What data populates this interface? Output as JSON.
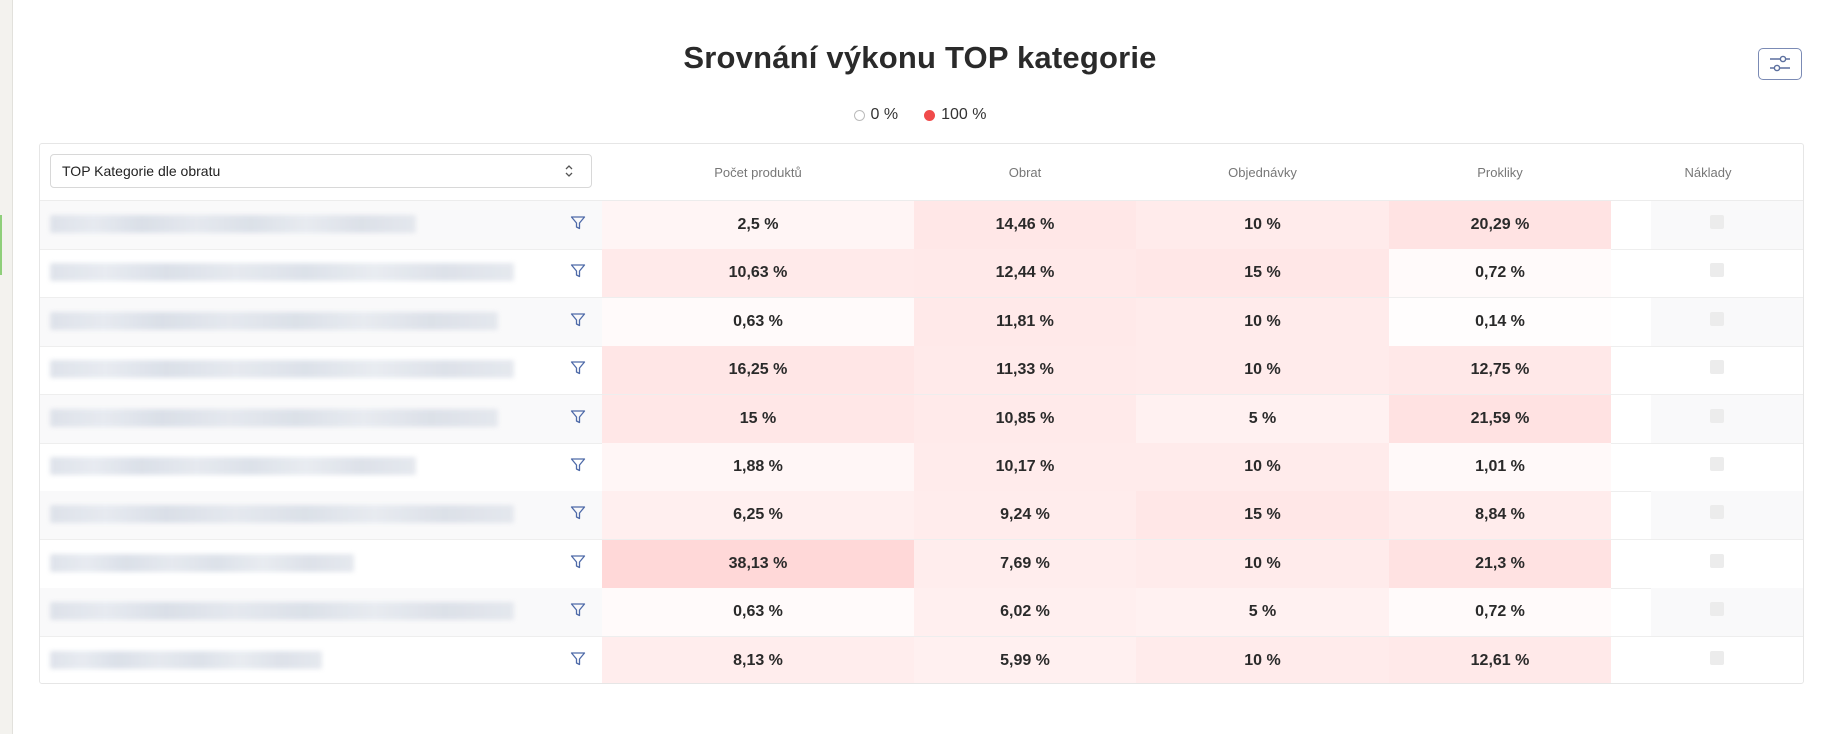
{
  "title": "Srovnání výkonu TOP kategorie",
  "legend": {
    "low_label": "0 %",
    "high_label": "100 %",
    "low_color": "#ffffff",
    "high_color": "#f04a4a"
  },
  "table": {
    "dimension_select": {
      "value": "TOP Kategorie dle obratu"
    },
    "columns": [
      "Počet produktů",
      "Obrat",
      "Objednávky",
      "Prokliky",
      "Náklady"
    ],
    "rows": [
      {
        "values": [
          "2,5 %",
          "14,46 %",
          "10 %",
          "20,29 %"
        ],
        "shares": [
          2.5,
          14.46,
          10,
          20.29
        ]
      },
      {
        "values": [
          "10,63 %",
          "12,44 %",
          "15 %",
          "0,72 %"
        ],
        "shares": [
          10.63,
          12.44,
          15,
          0.72
        ]
      },
      {
        "values": [
          "0,63 %",
          "11,81 %",
          "10 %",
          "0,14 %"
        ],
        "shares": [
          0.63,
          11.81,
          10,
          0.14
        ]
      },
      {
        "values": [
          "16,25 %",
          "11,33 %",
          "10 %",
          "12,75 %"
        ],
        "shares": [
          16.25,
          11.33,
          10,
          12.75
        ]
      },
      {
        "values": [
          "15 %",
          "10,85 %",
          "5 %",
          "21,59 %"
        ],
        "shares": [
          15,
          10.85,
          5,
          21.59
        ]
      },
      {
        "values": [
          "1,88 %",
          "10,17 %",
          "10 %",
          "1,01 %"
        ],
        "shares": [
          1.88,
          10.17,
          10,
          1.01
        ]
      },
      {
        "values": [
          "6,25 %",
          "9,24 %",
          "15 %",
          "8,84 %"
        ],
        "shares": [
          6.25,
          9.24,
          15,
          8.84
        ]
      },
      {
        "values": [
          "38,13 %",
          "7,69 %",
          "10 %",
          "21,3 %"
        ],
        "shares": [
          38.13,
          7.69,
          10,
          21.3
        ]
      },
      {
        "values": [
          "0,63 %",
          "6,02 %",
          "5 %",
          "0,72 %"
        ],
        "shares": [
          0.63,
          6.02,
          5,
          0.72
        ]
      },
      {
        "values": [
          "8,13 %",
          "5,99 %",
          "10 %",
          "12,61 %"
        ],
        "shares": [
          8.13,
          5.99,
          10,
          12.61
        ]
      }
    ]
  },
  "icons": {
    "settings": "sliders-icon",
    "select": "chevron-up-down-icon",
    "row_filter": "filter-icon"
  }
}
